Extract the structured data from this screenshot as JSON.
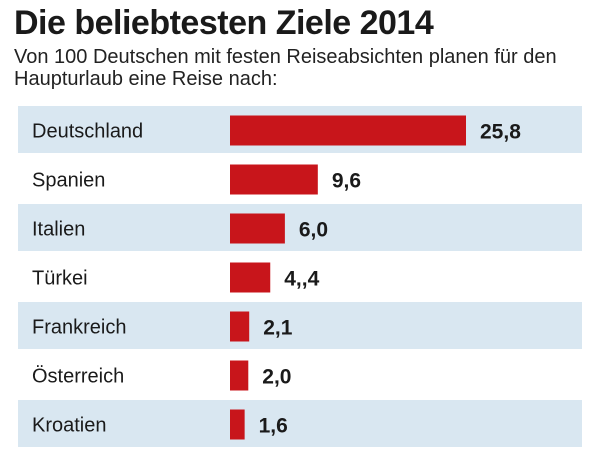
{
  "colors": {
    "bar": "#c8151b",
    "row_shaded": "#d9e7f1",
    "row_plain": "#ffffff"
  },
  "chart_data": {
    "type": "bar",
    "orientation": "horizontal",
    "title": "Die beliebtesten Ziele 2014",
    "subtitle": "Von 100 Deutschen mit festen Reiseabsichten planen für den Haupturlaub eine Reise nach:",
    "categories": [
      "Deutschland",
      "Spanien",
      "Italien",
      "Türkei",
      "Frankreich",
      "Österreich",
      "Kroatien"
    ],
    "values": [
      25.8,
      9.6,
      6.0,
      4.4,
      2.1,
      2.0,
      1.6
    ],
    "value_labels": [
      "25,8",
      "9,6",
      "6,0",
      "4,,4",
      "2,1",
      "2,0",
      "1,6"
    ],
    "xlim": [
      0,
      25.8
    ],
    "legend": "none",
    "grid": false
  }
}
